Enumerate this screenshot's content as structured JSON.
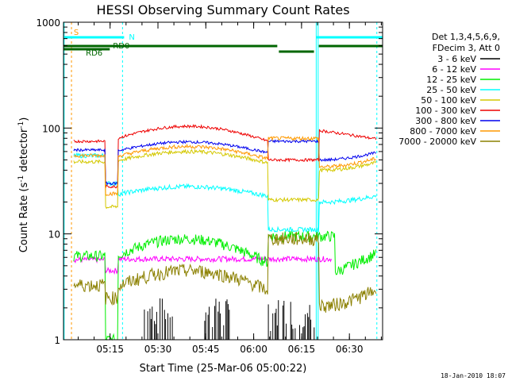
{
  "chart_data": {
    "type": "line",
    "title": "HESSI Observing Summary Count Rates",
    "xlabel": "Start Time (25-Mar-06 05:00:22)",
    "ylabel_main": "Count Rate (s",
    "ylabel_sup1": "-1",
    "ylabel_mid": " detector",
    "ylabel_sup2": "-1",
    "ylabel_end": ")",
    "y_scale": "log",
    "ylim": [
      1,
      1000
    ],
    "xlim_minutes": [
      0,
      100
    ],
    "x_ticks": [
      {
        "label": "05:15",
        "min": 14.6
      },
      {
        "label": "05:30",
        "min": 29.6
      },
      {
        "label": "05:45",
        "min": 44.6
      },
      {
        "label": "06:00",
        "min": 59.6
      },
      {
        "label": "06:15",
        "min": 74.6
      },
      {
        "label": "06:30",
        "min": 89.6
      }
    ],
    "y_ticks": [
      {
        "label": "1",
        "value": 1
      },
      {
        "label": "10",
        "value": 10
      },
      {
        "label": "100",
        "value": 100
      },
      {
        "label": "1000",
        "value": 1000
      }
    ],
    "legend_position": "right",
    "legend_header": [
      "Det 1,3,4,5,6,9,",
      "FDecim 3, Att 0"
    ],
    "series": [
      {
        "name": "3 - 6 keV",
        "color": "#000000",
        "level": 1.5
      },
      {
        "name": "6 - 12 keV",
        "color": "#ff00ff",
        "level": 5.8
      },
      {
        "name": "12 - 25 keV",
        "color": "#00ee00",
        "level": 6.5
      },
      {
        "name": "25 - 50 keV",
        "color": "#00ffff",
        "level": 25
      },
      {
        "name": "50 - 100 keV",
        "color": "#d4c800",
        "level": 55
      },
      {
        "name": "100 - 300 keV",
        "color": "#ee0000",
        "level": 85
      },
      {
        "name": "300 - 800 keV",
        "color": "#0000ee",
        "level": 65
      },
      {
        "name": "800 - 7000 keV",
        "color": "#ff9900",
        "level": 58
      },
      {
        "name": "7000 - 20000 keV",
        "color": "#8b8000",
        "level": 3.5
      }
    ],
    "flags": [
      {
        "label": "S",
        "color": "#ff9900"
      },
      {
        "label": "N",
        "color": "#00ffff"
      },
      {
        "label": "RD0",
        "color": "#006600"
      },
      {
        "label": "RD6",
        "color": "#006600"
      }
    ],
    "timestamp": "18-Jan-2010 18:07"
  }
}
